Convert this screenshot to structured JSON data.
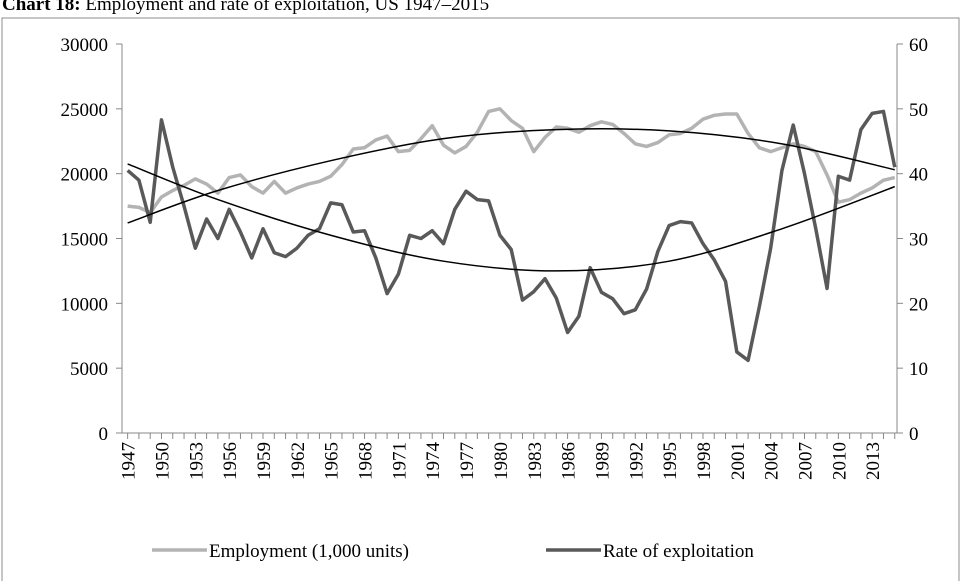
{
  "chart_data": {
    "type": "line",
    "title_label": "Chart 18:",
    "title": "Employment and rate of exploitation, US 1947–2015",
    "x": [
      1947,
      1948,
      1949,
      1950,
      1951,
      1952,
      1953,
      1954,
      1955,
      1956,
      1957,
      1958,
      1959,
      1960,
      1961,
      1962,
      1963,
      1964,
      1965,
      1966,
      1967,
      1968,
      1969,
      1970,
      1971,
      1972,
      1973,
      1974,
      1975,
      1976,
      1977,
      1978,
      1979,
      1980,
      1981,
      1982,
      1983,
      1984,
      1985,
      1986,
      1987,
      1988,
      1989,
      1990,
      1991,
      1992,
      1993,
      1994,
      1995,
      1996,
      1997,
      1998,
      1999,
      2000,
      2001,
      2002,
      2003,
      2004,
      2005,
      2006,
      2007,
      2008,
      2009,
      2010,
      2011,
      2012,
      2013,
      2014,
      2015
    ],
    "xlim": [
      1946.5,
      2015.2
    ],
    "xticks": [
      1947,
      1950,
      1953,
      1956,
      1959,
      1962,
      1965,
      1968,
      1971,
      1974,
      1977,
      1980,
      1983,
      1986,
      1989,
      1992,
      1995,
      1998,
      2001,
      2004,
      2007,
      2010,
      2013
    ],
    "ylim": [
      0,
      30000
    ],
    "yticks": [
      0,
      5000,
      10000,
      15000,
      20000,
      25000,
      30000
    ],
    "y2lim": [
      0,
      60
    ],
    "y2ticks": [
      0,
      10,
      20,
      30,
      40,
      50,
      60
    ],
    "legend": "bottom",
    "series": [
      {
        "name": "Employment (1,000 units)",
        "color": "#b3b3b3",
        "values": [
          17500,
          17400,
          17000,
          18200,
          18700,
          19100,
          19600,
          19200,
          18500,
          19700,
          19900,
          19000,
          18500,
          19400,
          18500,
          18900,
          19200,
          19400,
          19800,
          20700,
          21900,
          22000,
          22600,
          22900,
          21700,
          21800,
          22700,
          23700,
          22200,
          21600,
          22100,
          23200,
          24800,
          25000,
          24100,
          23500,
          21700,
          22800,
          23600,
          23500,
          23200,
          23700,
          24000,
          23800,
          23100,
          22300,
          22100,
          22400,
          23000,
          23100,
          23500,
          24200,
          24500,
          24600,
          24600,
          23100,
          22000,
          21700,
          22000,
          22300,
          22100,
          21700,
          19900,
          17800,
          18000,
          18500,
          18900,
          19500,
          19700
        ]
      },
      {
        "name": "Rate of exploitation",
        "color": "#595959",
        "axis": "y2",
        "values": [
          40.5,
          39,
          32.5,
          48.3,
          41,
          35,
          28.5,
          33,
          30,
          34.5,
          31,
          27,
          31.5,
          27.8,
          27.2,
          28.5,
          30.5,
          31.5,
          35.5,
          35.2,
          31,
          31.2,
          27,
          21.5,
          24.5,
          30.5,
          30,
          31.2,
          29.2,
          34.5,
          37.3,
          36,
          35.8,
          30.5,
          28.3,
          20.5,
          21.8,
          23.8,
          20.8,
          15.5,
          18,
          25.5,
          21.7,
          20.7,
          18.4,
          19,
          22.2,
          28,
          32,
          32.6,
          32.4,
          29.2,
          26.7,
          23.4,
          12.5,
          11.2,
          19.5,
          28.5,
          40.5,
          47.5,
          40,
          31.5,
          22.3,
          39.6,
          39,
          46.8,
          49.3,
          49.6,
          41
        ]
      }
    ],
    "trendlines": [
      {
        "color": "#000000",
        "x": [
          1947,
          1955,
          1965,
          1975,
          1985,
          1995,
          2005,
          2015
        ],
        "values": [
          16200,
          18700,
          21000,
          22700,
          23400,
          23300,
          22300,
          20300
        ]
      },
      {
        "color": "#000000",
        "axis": "y2",
        "x": [
          1947,
          1955,
          1965,
          1975,
          1985,
          1995,
          2005,
          2015
        ],
        "values": [
          41.5,
          36,
          30.5,
          26.5,
          25,
          26.5,
          31.5,
          38
        ]
      }
    ]
  }
}
